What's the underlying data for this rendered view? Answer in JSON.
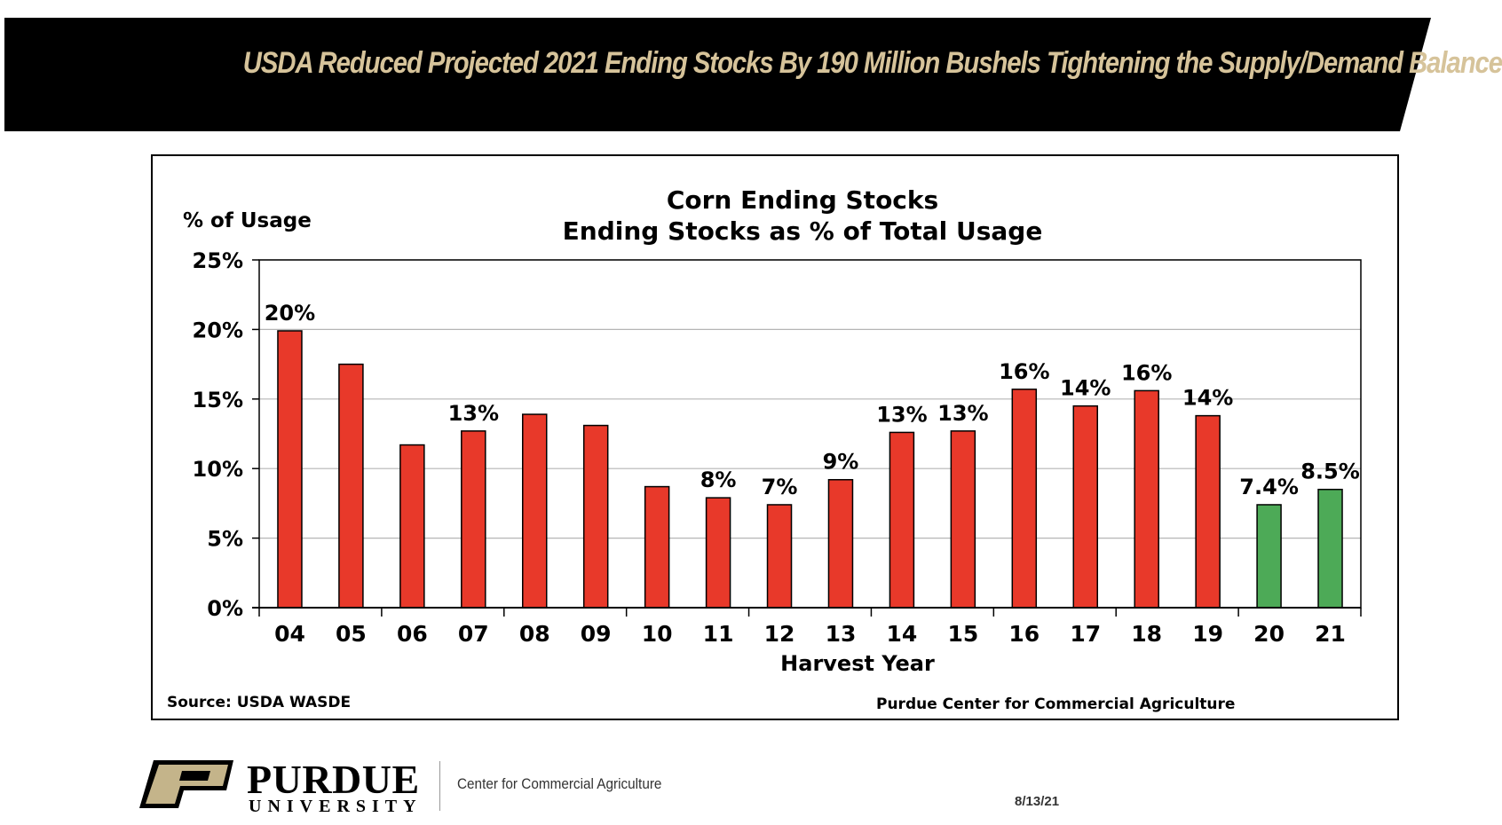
{
  "banner": {
    "title": "USDA Reduced Projected 2021 Ending Stocks By 190 Million Bushels Tightening the Supply/Demand Balance"
  },
  "colors": {
    "banner_bg": "#000000",
    "banner_text": "#d6c39a",
    "bar_historical": "#e8392a",
    "bar_projected": "#4daa57",
    "logo_gold": "#c4b48a"
  },
  "chart_data": {
    "type": "bar",
    "title": "Corn Ending Stocks",
    "subtitle": "Ending Stocks as % of Total Usage",
    "ylabel": "% of Usage",
    "xlabel": "Harvest Year",
    "ylim": [
      0,
      25
    ],
    "yticks": [
      "0%",
      "5%",
      "10%",
      "15%",
      "20%",
      "25%"
    ],
    "grid": true,
    "categories": [
      "04",
      "05",
      "06",
      "07",
      "08",
      "09",
      "10",
      "11",
      "12",
      "13",
      "14",
      "15",
      "16",
      "17",
      "18",
      "19",
      "20",
      "21"
    ],
    "values": [
      19.9,
      17.5,
      11.7,
      12.7,
      13.9,
      13.1,
      8.7,
      7.9,
      7.4,
      9.2,
      12.6,
      12.7,
      15.7,
      14.5,
      15.6,
      13.8,
      7.4,
      8.5
    ],
    "projected": [
      false,
      false,
      false,
      false,
      false,
      false,
      false,
      false,
      false,
      false,
      false,
      false,
      false,
      false,
      false,
      false,
      true,
      true
    ],
    "data_labels": [
      "20%",
      "",
      "",
      "13%",
      "",
      "",
      "",
      "8%",
      "7%",
      "9%",
      "13%",
      "13%",
      "16%",
      "14%",
      "16%",
      "14%",
      "7.4%",
      "8.5%"
    ],
    "source": "Source:  USDA WASDE",
    "credit": "Purdue Center for Commercial Agriculture"
  },
  "footer": {
    "logo_main": "PURDUE",
    "logo_sub": "UNIVERSITY",
    "center_name": "Center for Commercial Agriculture",
    "date": "8/13/21"
  }
}
